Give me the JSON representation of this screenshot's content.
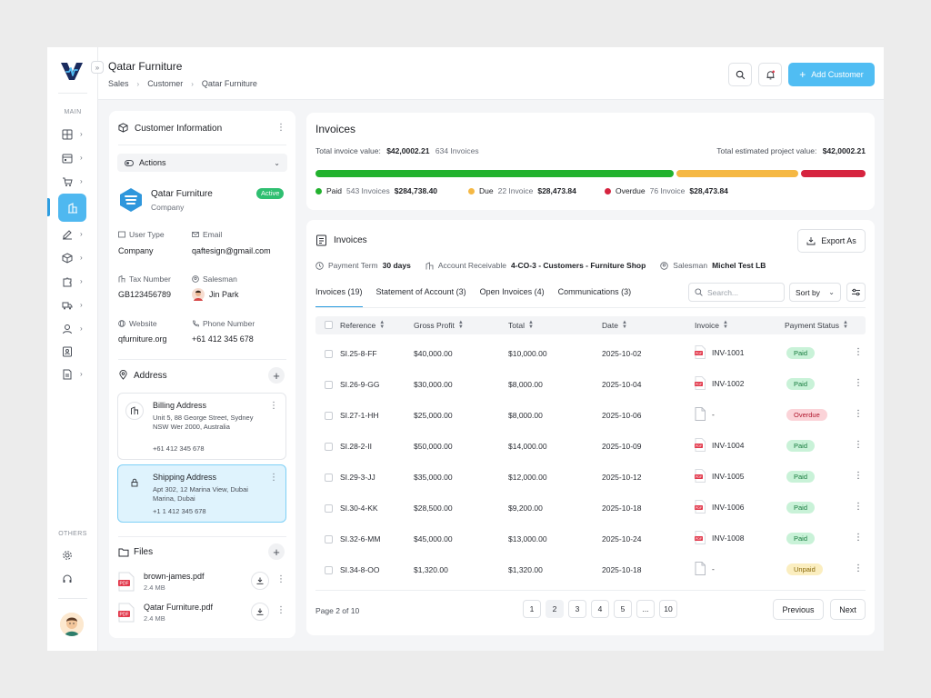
{
  "header": {
    "title": "Qatar Furniture",
    "breadcrumb": [
      "Sales",
      "Customer",
      "Qatar Furniture"
    ],
    "add_button": "Add Customer"
  },
  "sidebar": {
    "main_label": "MAIN",
    "others_label": "OTHERS",
    "items": [
      {
        "icon": "grid-icon"
      },
      {
        "icon": "calendar-icon"
      },
      {
        "icon": "cart-icon"
      },
      {
        "icon": "building-icon",
        "active": true
      },
      {
        "icon": "edit-icon"
      },
      {
        "icon": "box-icon"
      },
      {
        "icon": "puzzle-icon"
      },
      {
        "icon": "truck-icon"
      },
      {
        "icon": "user-icon"
      },
      {
        "icon": "contact-card-icon"
      },
      {
        "icon": "document-icon"
      }
    ],
    "others": [
      {
        "icon": "settings-icon"
      },
      {
        "icon": "headphones-icon"
      }
    ]
  },
  "customer": {
    "panel_title": "Customer Information",
    "actions_label": "Actions",
    "name": "Qatar Furniture",
    "type_sub": "Company",
    "status": "Active",
    "fields": {
      "user_type_label": "User Type",
      "user_type": "Company",
      "email_label": "Email",
      "email": "qaftesign@gmail.com",
      "tax_label": "Tax Number",
      "tax": "GB123456789",
      "salesman_label": "Salesman",
      "salesman": "Jin Park",
      "website_label": "Website",
      "website": "qfurniture.org",
      "phone_label": "Phone Number",
      "phone": "+61 412 345 678"
    },
    "address_title": "Address",
    "billing": {
      "title": "Billing Address",
      "lines": "Unit 5, 88 George Street, Sydney NSW Wer 2000, Australia",
      "phone": "+61 412 345 678"
    },
    "shipping": {
      "title": "Shipping Address",
      "lines": "Apt 302, 12 Marina View, Dubai Marina, Dubai",
      "phone": "+1 1 412 345 678"
    },
    "files_title": "Files",
    "files": [
      {
        "name": "brown-james.pdf",
        "size": "2.4 MB"
      },
      {
        "name": "Qatar Furniture.pdf",
        "size": "2.4 MB"
      }
    ]
  },
  "summary": {
    "title": "Invoices",
    "total_label": "Total invoice value:",
    "total_value": "$42,0002.21",
    "total_count": "634 Invoices",
    "project_label": "Total estimated project value:",
    "project_value": "$42,0002.21",
    "bar_colors": {
      "paid": "#22b22e",
      "due": "#f5b844",
      "overdue": "#d6243f"
    },
    "bar_fractions": {
      "paid": 0.657,
      "due": 0.226,
      "overdue": 0.117
    },
    "legend": [
      {
        "label": "Paid",
        "count": "543 Invoices",
        "amount": "$284,738.40",
        "color": "#22b22e"
      },
      {
        "label": "Due",
        "count": "22 Invoice",
        "amount": "$28,473.84",
        "color": "#f5b844"
      },
      {
        "label": "Overdue",
        "count": "76 Invoice",
        "amount": "$28,473.84",
        "color": "#d6243f"
      }
    ]
  },
  "invoices": {
    "title": "Invoices",
    "export_label": "Export As",
    "payment_term_label": "Payment Term",
    "payment_term": "30 days",
    "account_label": "Account Receivable",
    "account": "4-CO-3 - Customers - Furniture Shop",
    "salesman_label": "Salesman",
    "salesman": "Michel Test LB",
    "tabs": [
      "Invoices (19)",
      "Statement of Account (3)",
      "Open Invoices (4)",
      "Communications (3)"
    ],
    "search_placeholder": "Search...",
    "sort_label": "Sort by",
    "columns": [
      "Reference",
      "Gross Profit",
      "Total",
      "Date",
      "Invoice",
      "Payment Status"
    ],
    "rows": [
      {
        "ref": "SI.25-8-FF",
        "gross": "$40,000.00",
        "total": "$10,000.00",
        "date": "2025-10-02",
        "invoice": "INV-1001",
        "has_pdf": true,
        "status": "Paid"
      },
      {
        "ref": "SI.26-9-GG",
        "gross": "$30,000.00",
        "total": "$8,000.00",
        "date": "2025-10-04",
        "invoice": "INV-1002",
        "has_pdf": true,
        "status": "Paid"
      },
      {
        "ref": "SI.27-1-HH",
        "gross": "$25,000.00",
        "total": "$8,000.00",
        "date": "2025-10-06",
        "invoice": "-",
        "has_pdf": false,
        "status": "Overdue"
      },
      {
        "ref": "SI.28-2-II",
        "gross": "$50,000.00",
        "total": "$14,000.00",
        "date": "2025-10-09",
        "invoice": "INV-1004",
        "has_pdf": true,
        "status": "Paid"
      },
      {
        "ref": "SI.29-3-JJ",
        "gross": "$35,000.00",
        "total": "$12,000.00",
        "date": "2025-10-12",
        "invoice": "INV-1005",
        "has_pdf": true,
        "status": "Paid"
      },
      {
        "ref": "SI.30-4-KK",
        "gross": "$28,500.00",
        "total": "$9,200.00",
        "date": "2025-10-18",
        "invoice": "INV-1006",
        "has_pdf": true,
        "status": "Paid"
      },
      {
        "ref": "SI.32-6-MM",
        "gross": "$45,000.00",
        "total": "$13,000.00",
        "date": "2025-10-24",
        "invoice": "INV-1008",
        "has_pdf": true,
        "status": "Paid"
      },
      {
        "ref": "SI.34-8-OO",
        "gross": "$1,320.00",
        "total": "$1,320.00",
        "date": "2025-10-18",
        "invoice": "-",
        "has_pdf": false,
        "status": "Unpaid"
      }
    ],
    "status_colors": {
      "Paid": {
        "bg": "#c9f2d8",
        "fg": "#157a3c"
      },
      "Overdue": {
        "bg": "#fbd3d8",
        "fg": "#b0182e"
      },
      "Unpaid": {
        "bg": "#fbeec0",
        "fg": "#8a6a0b"
      }
    },
    "page_info": "Page 2 of 10",
    "pages": [
      "1",
      "2",
      "3",
      "4",
      "5",
      "...",
      "10"
    ],
    "current_page": "2",
    "previous_label": "Previous",
    "next_label": "Next"
  }
}
